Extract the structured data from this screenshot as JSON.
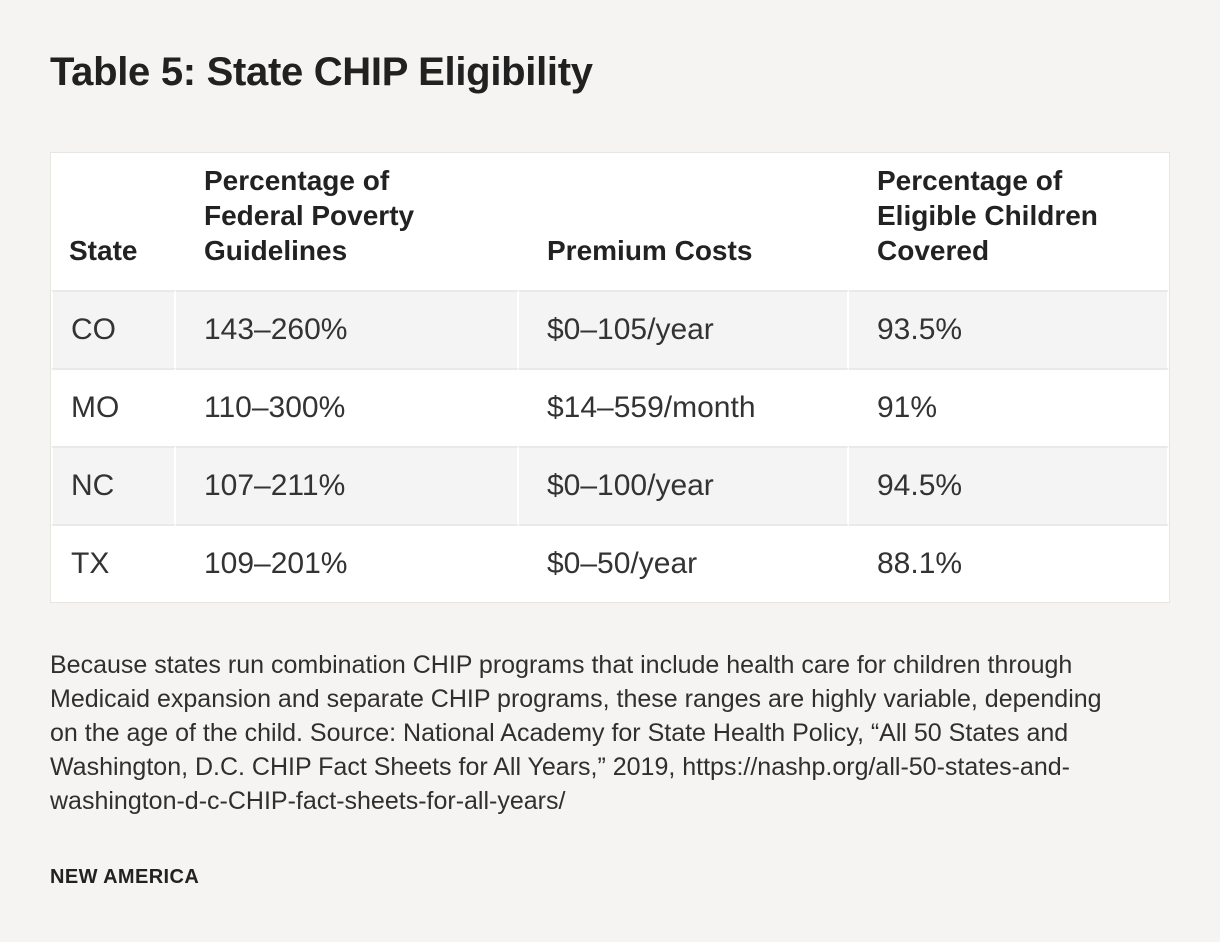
{
  "page": {
    "title": "Table 5: State CHIP Eligibility",
    "footnote": "Because states run combination CHIP programs that include health care for children through Medicaid expansion and separate CHIP programs, these ranges are highly variable, depending on the age of the child. Source: National Academy for State Health Policy, “All 50 States and Washington, D.C. CHIP Fact Sheets for All Years,” 2019, https://nashp.org/all-50-states-and-washington-d-c-CHIP-fact-sheets-for-all-years/",
    "brand": "NEW AMERICA"
  },
  "table": {
    "columns": [
      {
        "key": "state",
        "label": "State"
      },
      {
        "key": "fpg",
        "label": "Percentage of\nFederal Poverty\nGuidelines"
      },
      {
        "key": "premium",
        "label": "Premium Costs"
      },
      {
        "key": "covered",
        "label": "Percentage of\nEligible Children\nCovered"
      }
    ],
    "rows": [
      [
        "CO",
        "143–260%",
        "$0–105/year",
        "93.5%"
      ],
      [
        "MO",
        "110–300%",
        "$14–559/month",
        "91%"
      ],
      [
        "NC",
        "107–211%",
        "$0–100/year",
        "94.5%"
      ],
      [
        "TX",
        "109–201%",
        "$0–50/year",
        "88.1%"
      ]
    ]
  },
  "chart_data": {
    "type": "table",
    "title": "Table 5: State CHIP Eligibility",
    "columns": [
      "State",
      "Percentage of Federal Poverty Guidelines",
      "Premium Costs",
      "Percentage of Eligible Children Covered"
    ],
    "rows": [
      [
        "CO",
        "143–260%",
        "$0–105/year",
        "93.5%"
      ],
      [
        "MO",
        "110–300%",
        "$14–559/month",
        "91%"
      ],
      [
        "NC",
        "107–211%",
        "$0–100/year",
        "94.5%"
      ],
      [
        "TX",
        "109–201%",
        "$0–50/year",
        "88.1%"
      ]
    ],
    "covered_values_percent": {
      "CO": 93.5,
      "MO": 91,
      "NC": 94.5,
      "TX": 88.1
    },
    "note": "Because states run combination CHIP programs that include health care for children through Medicaid expansion and separate CHIP programs, these ranges are highly variable, depending on the age of the child. Source: National Academy for State Health Policy, “All 50 States and Washington, D.C. CHIP Fact Sheets for All Years,” 2019, https://nashp.org/all-50-states-and-washington-d-c-CHIP-fact-sheets-for-all-years/",
    "brand": "NEW AMERICA",
    "layout": {
      "striped_rows": true,
      "stripe_color": "#f4f4f4",
      "header_position": "top"
    }
  },
  "colors": {
    "page_bg": "#f5f4f2",
    "stripe_bg": "#f4f4f4",
    "row_separator": "#e9e9e9",
    "text_dark": "#212121"
  }
}
